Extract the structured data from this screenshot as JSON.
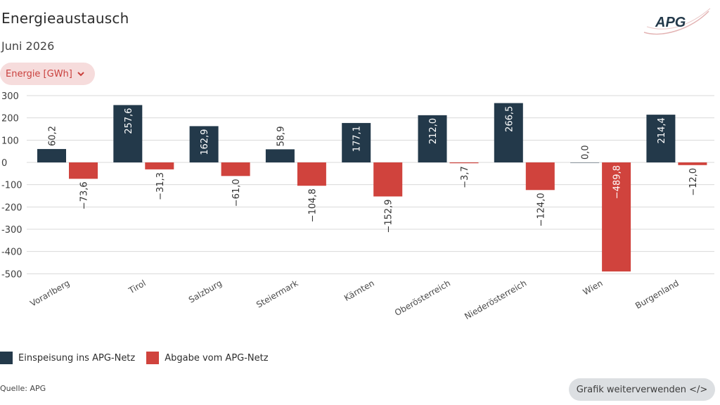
{
  "header": {
    "title": "Energieaustausch",
    "subtitle": "Juni 2026",
    "logo_text": "APG"
  },
  "controls": {
    "dropdown_label": "Energie [GWh]"
  },
  "colors": {
    "feed_in": "#23394a",
    "withdrawal": "#d0433d",
    "accent": "#c9403d",
    "grid": "#d9d9d9"
  },
  "chart_data": {
    "type": "bar",
    "categories": [
      "Vorarlberg",
      "Tirol",
      "Salzburg",
      "Steiermark",
      "Kärnten",
      "Oberösterreich",
      "Niederösterreich",
      "Wien",
      "Burgenland"
    ],
    "series": [
      {
        "name": "Einspeisung ins APG-Netz",
        "values": [
          60.2,
          257.6,
          162.9,
          58.9,
          177.1,
          212.0,
          266.5,
          0.0,
          214.4
        ],
        "labels": [
          "60,2",
          "257,6",
          "162,9",
          "58,9",
          "177,1",
          "212,0",
          "266,5",
          "0,0",
          "214,4"
        ]
      },
      {
        "name": "Abgabe vom APG-Netz",
        "values": [
          -73.6,
          -31.3,
          -61.0,
          -104.8,
          -152.9,
          -3.7,
          -124.0,
          -489.8,
          -12.0
        ],
        "labels": [
          "−73,6",
          "−31,3",
          "−61,0",
          "−104,8",
          "−152,9",
          "−3,7",
          "−124,0",
          "−489,8",
          "−12,0"
        ]
      }
    ],
    "yticks": [
      300,
      200,
      100,
      0,
      -100,
      -200,
      -300,
      -400,
      -500
    ],
    "ytick_labels": [
      "300",
      "200",
      "100",
      "0",
      "-100",
      "-200",
      "-300",
      "-400",
      "-500"
    ],
    "ylim": [
      -500,
      300
    ],
    "grid": true,
    "legend_position": "bottom-left"
  },
  "legend": {
    "feed_in_label": "Einspeisung ins APG-Netz",
    "withdrawal_label": "Abgabe vom APG-Netz"
  },
  "footer": {
    "source": "Quelle: APG",
    "reuse_button": "Grafik weiterverwenden </>"
  }
}
